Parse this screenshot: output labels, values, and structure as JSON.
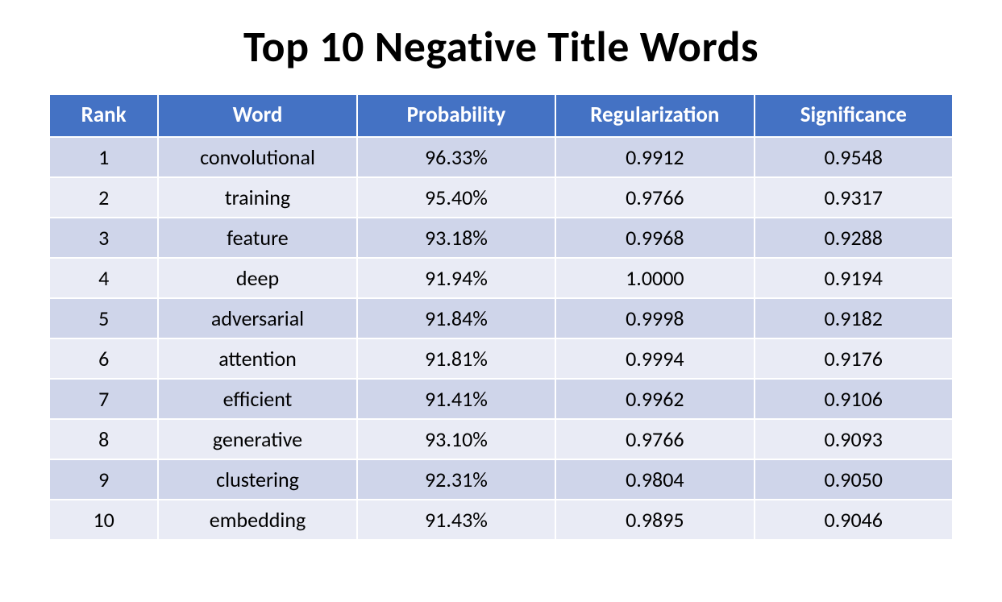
{
  "title": "Top 10 Negative Title Words",
  "table": {
    "type": "table",
    "header_bg": "#4472c4",
    "header_fg": "#ffffff",
    "row_bg_odd": "#cfd5ea",
    "row_bg_even": "#e9ebf5",
    "cell_fg": "#000000",
    "title_fontsize": 54,
    "header_fontsize": 27,
    "cell_fontsize": 26,
    "columns": [
      {
        "key": "rank",
        "label": "Rank",
        "width_pct": 12
      },
      {
        "key": "word",
        "label": "Word",
        "width_pct": 22
      },
      {
        "key": "prob",
        "label": "Probability",
        "width_pct": 22
      },
      {
        "key": "reg",
        "label": "Regularization",
        "width_pct": 22
      },
      {
        "key": "sig",
        "label": "Significance",
        "width_pct": 22
      }
    ],
    "rows": [
      {
        "rank": "1",
        "word": "convolutional",
        "prob": "96.33%",
        "reg": "0.9912",
        "sig": "0.9548"
      },
      {
        "rank": "2",
        "word": "training",
        "prob": "95.40%",
        "reg": "0.9766",
        "sig": "0.9317"
      },
      {
        "rank": "3",
        "word": "feature",
        "prob": "93.18%",
        "reg": "0.9968",
        "sig": "0.9288"
      },
      {
        "rank": "4",
        "word": "deep",
        "prob": "91.94%",
        "reg": "1.0000",
        "sig": "0.9194"
      },
      {
        "rank": "5",
        "word": "adversarial",
        "prob": "91.84%",
        "reg": "0.9998",
        "sig": "0.9182"
      },
      {
        "rank": "6",
        "word": "attention",
        "prob": "91.81%",
        "reg": "0.9994",
        "sig": "0.9176"
      },
      {
        "rank": "7",
        "word": "efficient",
        "prob": "91.41%",
        "reg": "0.9962",
        "sig": "0.9106"
      },
      {
        "rank": "8",
        "word": "generative",
        "prob": "93.10%",
        "reg": "0.9766",
        "sig": "0.9093"
      },
      {
        "rank": "9",
        "word": "clustering",
        "prob": "92.31%",
        "reg": "0.9804",
        "sig": "0.9050"
      },
      {
        "rank": "10",
        "word": "embedding",
        "prob": "91.43%",
        "reg": "0.9895",
        "sig": "0.9046"
      }
    ]
  }
}
